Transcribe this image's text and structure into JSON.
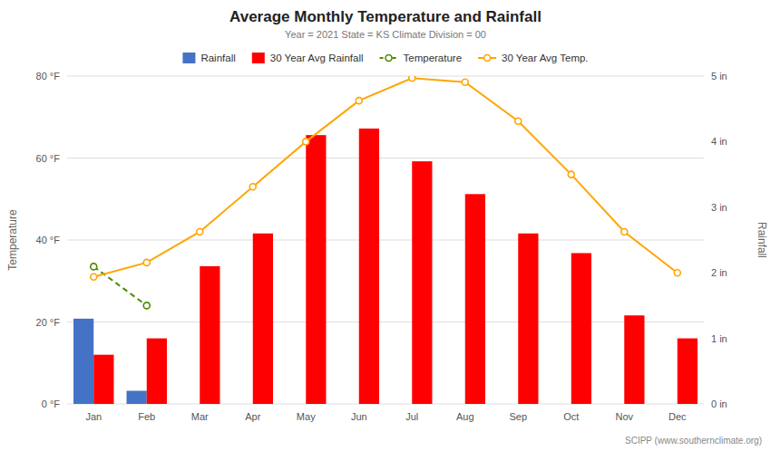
{
  "chart_data": {
    "type": "bar",
    "title": "Average Monthly Temperature and Rainfall",
    "subtitle": "Year = 2021  State = KS  Climate Division = 00",
    "annotations": [
      "SCIPP (www.southernclimate.org)"
    ],
    "categories": [
      "Jan",
      "Feb",
      "Mar",
      "Apr",
      "May",
      "Jun",
      "Jul",
      "Aug",
      "Sep",
      "Oct",
      "Nov",
      "Dec"
    ],
    "ylabel": "Temperature",
    "y2label": "Rainfall",
    "ylim": [
      0,
      80
    ],
    "yticks": [
      {
        "value": 0,
        "label": "0 °F"
      },
      {
        "value": 20,
        "label": "20 °F"
      },
      {
        "value": 40,
        "label": "40 °F"
      },
      {
        "value": 60,
        "label": "60 °F"
      },
      {
        "value": 80,
        "label": "80 °F"
      }
    ],
    "y2lim": [
      0,
      5
    ],
    "y2ticks": [
      {
        "value": 0,
        "label": "0 in"
      },
      {
        "value": 1,
        "label": "1 in"
      },
      {
        "value": 2,
        "label": "2 in"
      },
      {
        "value": 3,
        "label": "3 in"
      },
      {
        "value": 4,
        "label": "4 in"
      },
      {
        "value": 5,
        "label": "5 in"
      }
    ],
    "grid": true,
    "legend": "top",
    "series": [
      {
        "name": "Rainfall",
        "type": "bar",
        "axis": "y2",
        "color": "#4472C4",
        "values": [
          1.3,
          0.2,
          0,
          0,
          0,
          0,
          0,
          0,
          0,
          0,
          0,
          0
        ]
      },
      {
        "name": "30 Year Avg Rainfall",
        "type": "bar",
        "axis": "y2",
        "color": "#FF0000",
        "values": [
          0.75,
          1.0,
          2.1,
          2.6,
          4.1,
          4.2,
          3.7,
          3.2,
          2.6,
          2.3,
          1.35,
          1.0
        ]
      },
      {
        "name": "Temperature",
        "type": "line",
        "color": "#4B8B00",
        "marker": "circle",
        "line_style": "dashed",
        "values": [
          33.5,
          24.0,
          null,
          null,
          null,
          null,
          null,
          null,
          null,
          null,
          null,
          null
        ]
      },
      {
        "name": "30 Year Avg Temp.",
        "type": "line",
        "color": "#FFA500",
        "marker": "circle",
        "line_style": "solid",
        "values": [
          31.0,
          34.5,
          42.0,
          53.0,
          64.0,
          74.0,
          79.5,
          78.5,
          69.0,
          56.0,
          42.0,
          32.0
        ]
      }
    ]
  }
}
